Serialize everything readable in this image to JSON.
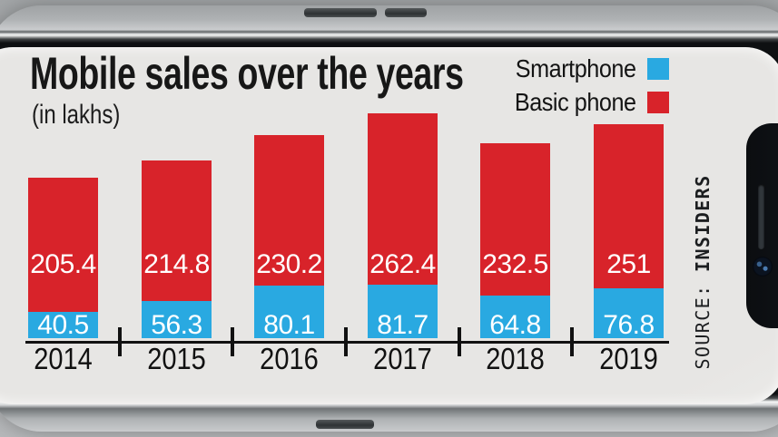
{
  "chart_data": {
    "type": "bar",
    "stacked": true,
    "title": "Mobile sales over the years",
    "subtitle": "(in lakhs)",
    "unit": "lakhs",
    "categories": [
      "2014",
      "2015",
      "2016",
      "2017",
      "2018",
      "2019"
    ],
    "series": [
      {
        "name": "Smartphone",
        "color": "#29a9e1",
        "values": [
          40.5,
          56.3,
          80.1,
          81.7,
          64.8,
          76.8
        ]
      },
      {
        "name": "Basic phone",
        "color": "#d8232a",
        "values": [
          205.4,
          214.8,
          230.2,
          262.4,
          232.5,
          251
        ]
      }
    ],
    "totals": [
      245.9,
      271.1,
      310.3,
      344.1,
      297.3,
      327.8
    ],
    "legend_position": "top-right",
    "value_labels": "white numbers inside each bar segment",
    "axis": {
      "x_baseline": true,
      "gridlines": false,
      "y_axis_shown": false
    }
  },
  "source": {
    "label": "SOURCE:",
    "name": "INSIDERS"
  }
}
